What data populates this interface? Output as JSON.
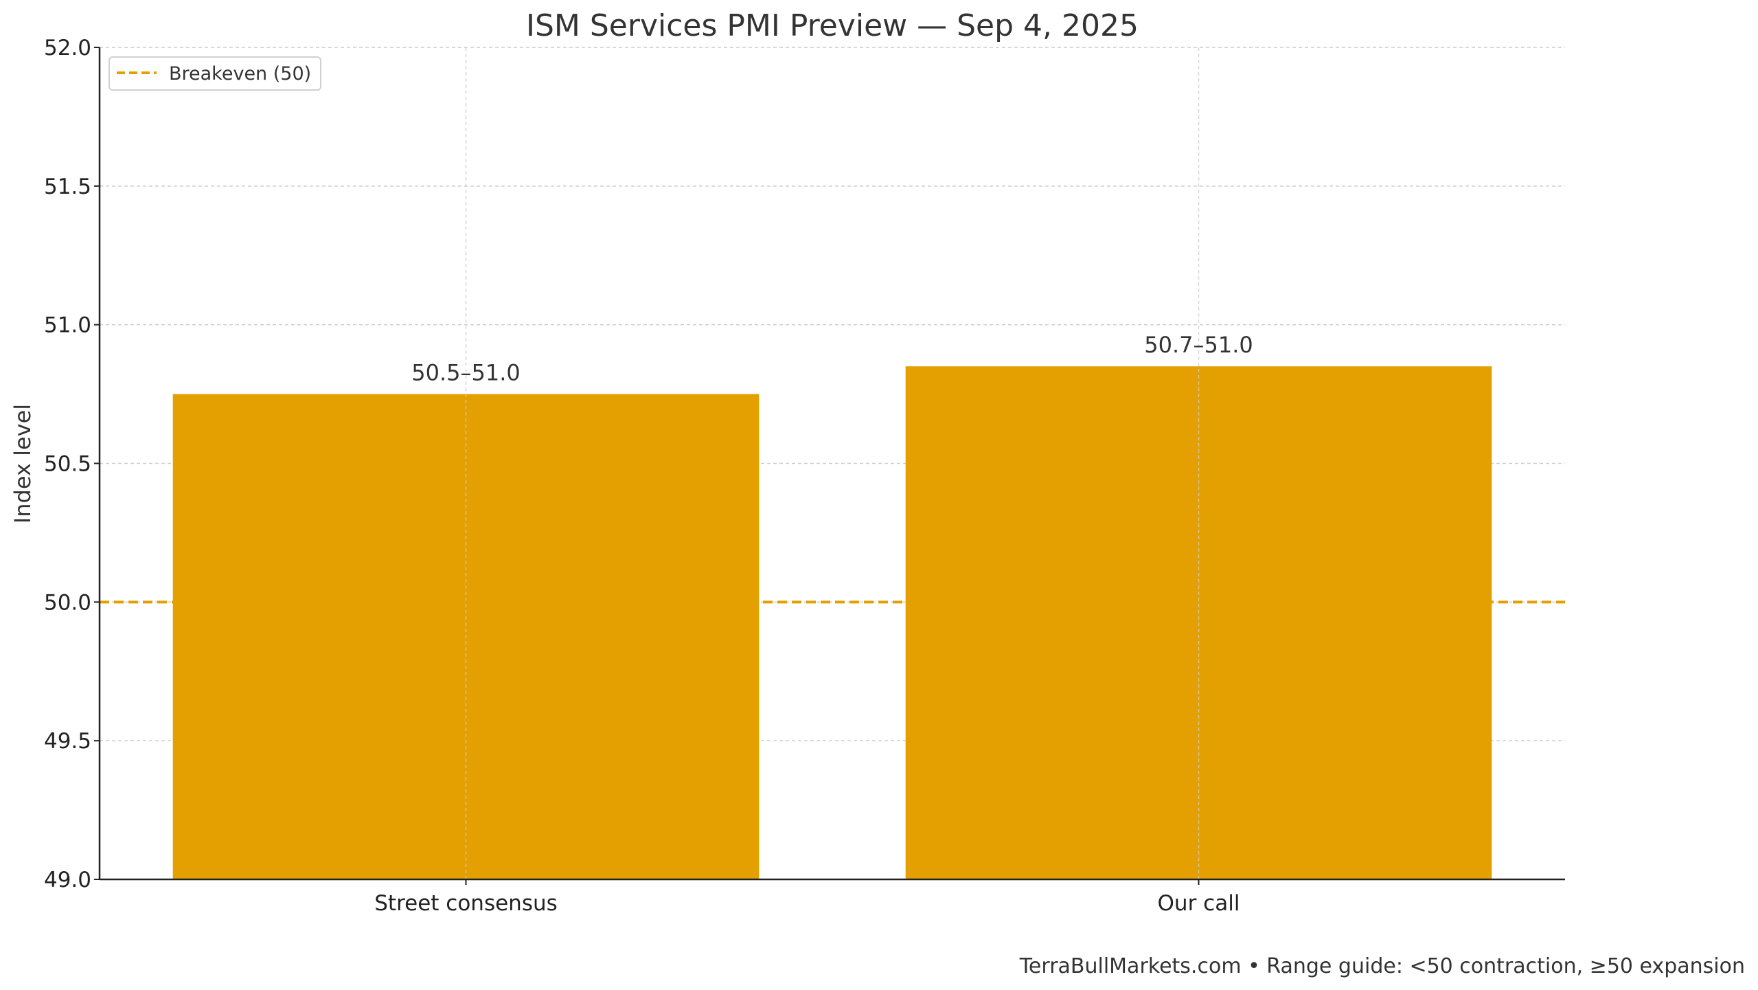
{
  "chart_data": {
    "type": "bar",
    "title": "ISM Services PMI Preview — Sep 4, 2025",
    "xlabel": "",
    "ylabel": "Index level",
    "categories": [
      "Street consensus",
      "Our call"
    ],
    "values": [
      50.75,
      50.85
    ],
    "data_labels": [
      "50.5–51.0",
      "50.7–51.0"
    ],
    "ylim": [
      49.0,
      52.0
    ],
    "yticks": [
      "49.0",
      "49.5",
      "50.0",
      "50.5",
      "51.0",
      "51.5",
      "52.0"
    ],
    "grid": true,
    "bar_color": "#E3A000",
    "reference_line": {
      "name": "Breakeven (50)",
      "value": 50,
      "color": "#E3A000",
      "style": "dashed"
    },
    "legend": {
      "placement": "top-left",
      "entries": [
        "Breakeven (50)"
      ]
    },
    "footer": "TerraBullMarkets.com • Range guide: <50 contraction, ≥50 expansion"
  }
}
